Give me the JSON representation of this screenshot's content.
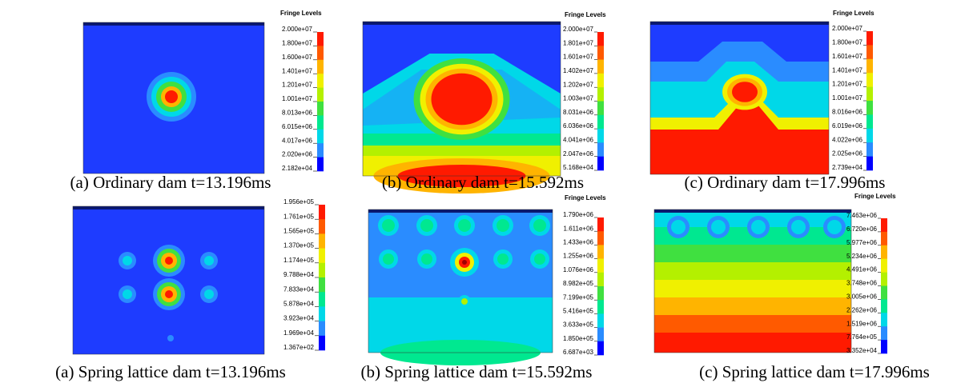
{
  "panels": [
    {
      "legend_title": "Fringe Levels",
      "levels": [
        "2.000e+07",
        "1.800e+07",
        "1.600e+07",
        "1.401e+07",
        "1.201e+07",
        "1.001e+07",
        "8.013e+06",
        "6.015e+06",
        "4.017e+06",
        "2.020e+06",
        "2.182e+04"
      ],
      "caption": "(a) Ordinary dam t=13.196ms"
    },
    {
      "legend_title": "Fringe Levels",
      "levels": [
        "2.000e+07",
        "1.801e+07",
        "1.601e+07",
        "1.402e+07",
        "1.202e+07",
        "1.003e+07",
        "8.031e+06",
        "6.036e+06",
        "4.041e+06",
        "2.047e+06",
        "5.168e+04"
      ],
      "caption": "(b) Ordinary dam t=15.592ms"
    },
    {
      "legend_title": "Fringe Levels",
      "levels": [
        "2.000e+07",
        "1.800e+07",
        "1.601e+07",
        "1.401e+07",
        "1.201e+07",
        "1.001e+07",
        "8.016e+06",
        "6.019e+06",
        "4.022e+06",
        "2.025e+06",
        "2.739e+04"
      ],
      "caption": "(c) Ordinary dam t=17.996ms"
    },
    {
      "levels": [
        "1.956e+05",
        "1.761e+05",
        "1.565e+05",
        "1.370e+05",
        "1.174e+05",
        "9.788e+04",
        "7.833e+04",
        "5.878e+04",
        "3.923e+04",
        "1.969e+04",
        "1.367e+02"
      ],
      "caption": "(a) Spring lattice dam t=13.196ms"
    },
    {
      "legend_title": "Fringe Levels",
      "levels": [
        "1.790e+06",
        "1.611e+06",
        "1.433e+06",
        "1.255e+06",
        "1.076e+06",
        "8.982e+05",
        "7.199e+05",
        "5.416e+05",
        "3.633e+05",
        "1.850e+05",
        "6.687e+03"
      ],
      "caption": "(b) Spring lattice dam t=15.592ms"
    },
    {
      "legend_title": "Fringe Levels",
      "levels": [
        "7.463e+06",
        "6.720e+06",
        "5.977e+06",
        "5.234e+06",
        "4.491e+06",
        "3.748e+06",
        "3.005e+06",
        "2.262e+06",
        "1.519e+06",
        "7.764e+05",
        "3.352e+04"
      ],
      "caption": "(c) Spring lattice dam t=17.996ms"
    }
  ]
}
